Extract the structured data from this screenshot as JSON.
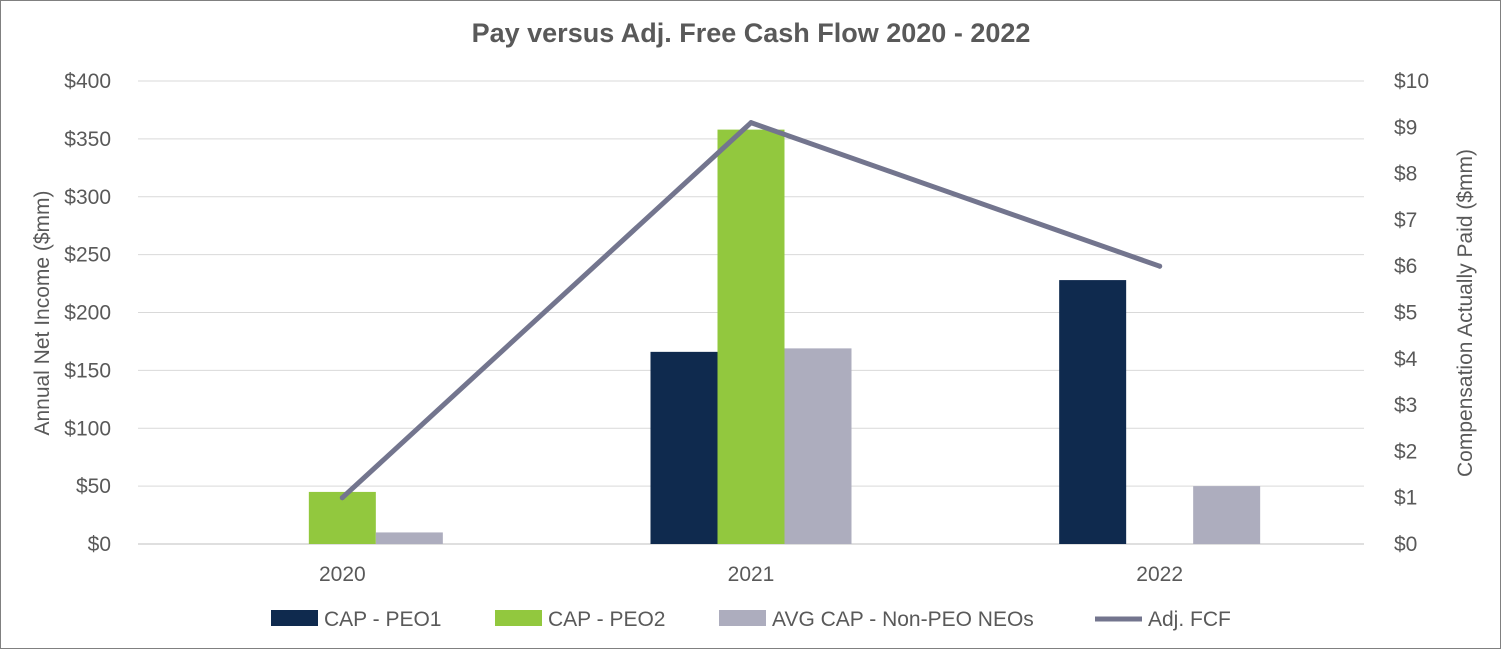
{
  "chart_data": {
    "type": "bar",
    "title": "Pay versus Adj. Free Cash Flow 2020 - 2022",
    "categories": [
      "2020",
      "2021",
      "2022"
    ],
    "y_left": {
      "label": "Annual Net Income ($mm)",
      "range": [
        0,
        400
      ],
      "ticks": [
        0,
        50,
        100,
        150,
        200,
        250,
        300,
        350,
        400
      ],
      "tick_labels": [
        "$0",
        "$50",
        "$100",
        "$150",
        "$200",
        "$250",
        "$300",
        "$350",
        "$400"
      ]
    },
    "y_right": {
      "label": "Compensation Actually Paid ($mm)",
      "range": [
        0,
        10
      ],
      "ticks": [
        0,
        1,
        2,
        3,
        4,
        5,
        6,
        7,
        8,
        9,
        10
      ],
      "tick_labels": [
        "$0",
        "$1",
        "$2",
        "$3",
        "$4",
        "$5",
        "$6",
        "$7",
        "$8",
        "$9",
        "$10"
      ]
    },
    "grid": true,
    "legend_position": "bottom",
    "series": [
      {
        "name": "CAP - PEO1",
        "type": "bar",
        "axis": "left",
        "color": "#0f2a4e",
        "values": [
          0,
          166,
          228
        ]
      },
      {
        "name": "CAP - PEO2",
        "type": "bar",
        "axis": "left",
        "color": "#92c83e",
        "values": [
          45,
          358,
          0
        ]
      },
      {
        "name": "AVG CAP - Non-PEO NEOs",
        "type": "bar",
        "axis": "left",
        "color": "#adadbe",
        "values": [
          10,
          169,
          50
        ]
      },
      {
        "name": "Adj. FCF",
        "type": "line",
        "axis": "right",
        "color": "#73758e",
        "values": [
          1.0,
          9.1,
          6.0
        ]
      }
    ]
  }
}
